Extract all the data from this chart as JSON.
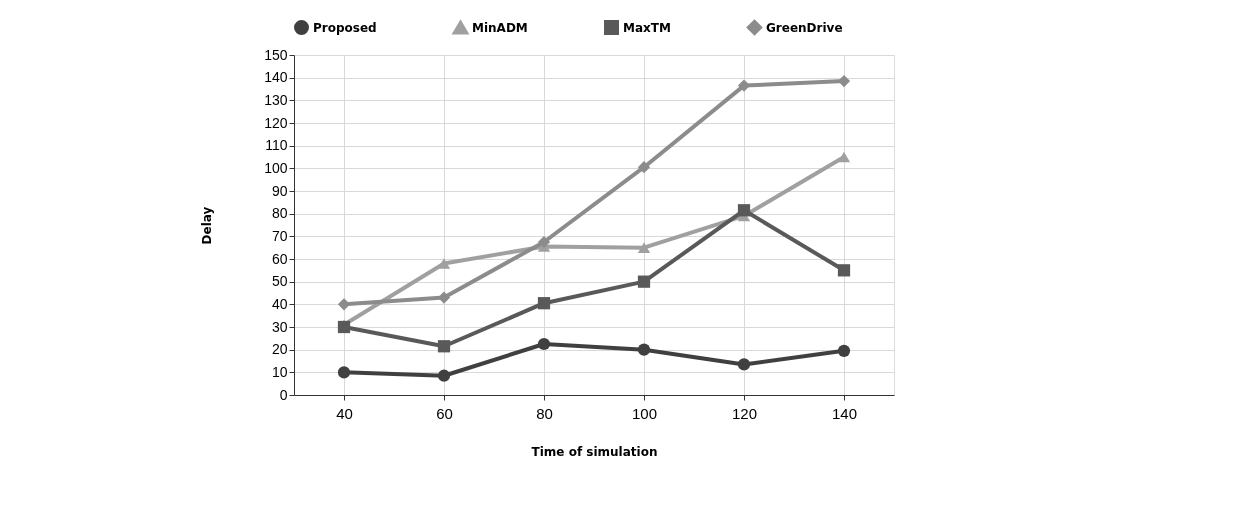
{
  "chart_data": {
    "type": "line",
    "xlabel": "Time of simulation",
    "ylabel": "Delay",
    "categories": [
      "40",
      "60",
      "80",
      "100",
      "120",
      "140"
    ],
    "series": [
      {
        "name": "Proposed",
        "color": "#404040",
        "marker": "circle",
        "values": [
          10,
          8.5,
          22.5,
          20,
          13.5,
          19.5
        ]
      },
      {
        "name": "MinADM",
        "color": "#a0a0a0",
        "marker": "triangle",
        "values": [
          31,
          58,
          65.5,
          65,
          79,
          105
        ]
      },
      {
        "name": "MaxTM",
        "color": "#595959",
        "marker": "square",
        "values": [
          30,
          21.5,
          40.5,
          50,
          81.5,
          55
        ]
      },
      {
        "name": "GreenDrive",
        "color": "#8c8c8c",
        "marker": "diamond",
        "values": [
          40,
          43,
          67.5,
          100.5,
          136.5,
          138.5
        ]
      }
    ],
    "ylim": [
      0,
      150
    ],
    "yticks": [
      0,
      10,
      20,
      30,
      40,
      50,
      60,
      70,
      80,
      90,
      100,
      110,
      120,
      130,
      140,
      150
    ],
    "grid": true,
    "legend": "top",
    "line_style": "solid"
  }
}
